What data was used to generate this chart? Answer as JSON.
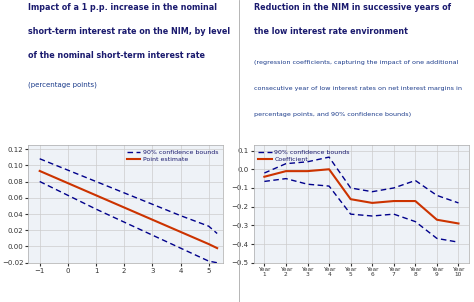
{
  "chart1": {
    "title_line1": "Impact of a 1 p.p. increase in the nominal",
    "title_line2": "short-term interest rate on the NIM, by level",
    "title_line3": "of the nominal short-term interest rate",
    "ylabel": "(percentage points)",
    "x": [
      -1.0,
      0.0,
      1.0,
      2.0,
      3.0,
      4.0,
      5.0,
      5.3
    ],
    "point_estimate": [
      0.093,
      0.078,
      0.063,
      0.048,
      0.033,
      0.018,
      0.003,
      -0.002
    ],
    "upper_bound": [
      0.108,
      0.094,
      0.08,
      0.066,
      0.052,
      0.038,
      0.025,
      0.016
    ],
    "lower_bound": [
      0.08,
      0.063,
      0.046,
      0.03,
      0.014,
      -0.002,
      -0.018,
      -0.02
    ],
    "xlim": [
      -1.4,
      5.5
    ],
    "ylim": [
      -0.02,
      0.125
    ],
    "xticks": [
      -1.0,
      0.0,
      1.0,
      2.0,
      3.0,
      4.0,
      5.0
    ],
    "yticks": [
      -0.02,
      0.0,
      0.02,
      0.04,
      0.06,
      0.08,
      0.1,
      0.12
    ],
    "legend1": "90% confidence bounds",
    "legend2": "Point estimate"
  },
  "chart2": {
    "title_line1": "Reduction in the NIM in successive years of",
    "title_line2": "the low interest rate environment",
    "subtitle": "(regression coefficients, capturing the impact of one additional\nconsecutive year of low interest rates on net interest margins in\npercentage points, and 90% confidence bounds)",
    "x": [
      1,
      2,
      3,
      4,
      5,
      6,
      7,
      8,
      9,
      10
    ],
    "coefficient": [
      -0.04,
      -0.01,
      -0.01,
      0.0,
      -0.16,
      -0.18,
      -0.17,
      -0.17,
      -0.27,
      -0.29
    ],
    "upper_bound": [
      -0.02,
      0.03,
      0.04,
      0.065,
      -0.1,
      -0.12,
      -0.1,
      -0.06,
      -0.14,
      -0.18
    ],
    "lower_bound": [
      -0.065,
      -0.05,
      -0.08,
      -0.09,
      -0.24,
      -0.25,
      -0.24,
      -0.28,
      -0.37,
      -0.39
    ],
    "xlim": [
      0.5,
      10.5
    ],
    "ylim": [
      -0.5,
      0.13
    ],
    "xticks": [
      1,
      2,
      3,
      4,
      5,
      6,
      7,
      8,
      9,
      10
    ],
    "yticks": [
      -0.5,
      -0.4,
      -0.3,
      -0.2,
      -0.1,
      0.0,
      0.1
    ],
    "legend1": "90% confidence bounds",
    "legend2": "Coefficient"
  },
  "title_color": "#1a1a6e",
  "subtitle_color": "#1a3a8a",
  "line_blue": "#00008B",
  "line_orange": "#CC3300",
  "bg_color": "#eef2f7",
  "grid_color": "#cccccc",
  "axis_label_color": "#1a3a8a",
  "tick_color": "#333333"
}
